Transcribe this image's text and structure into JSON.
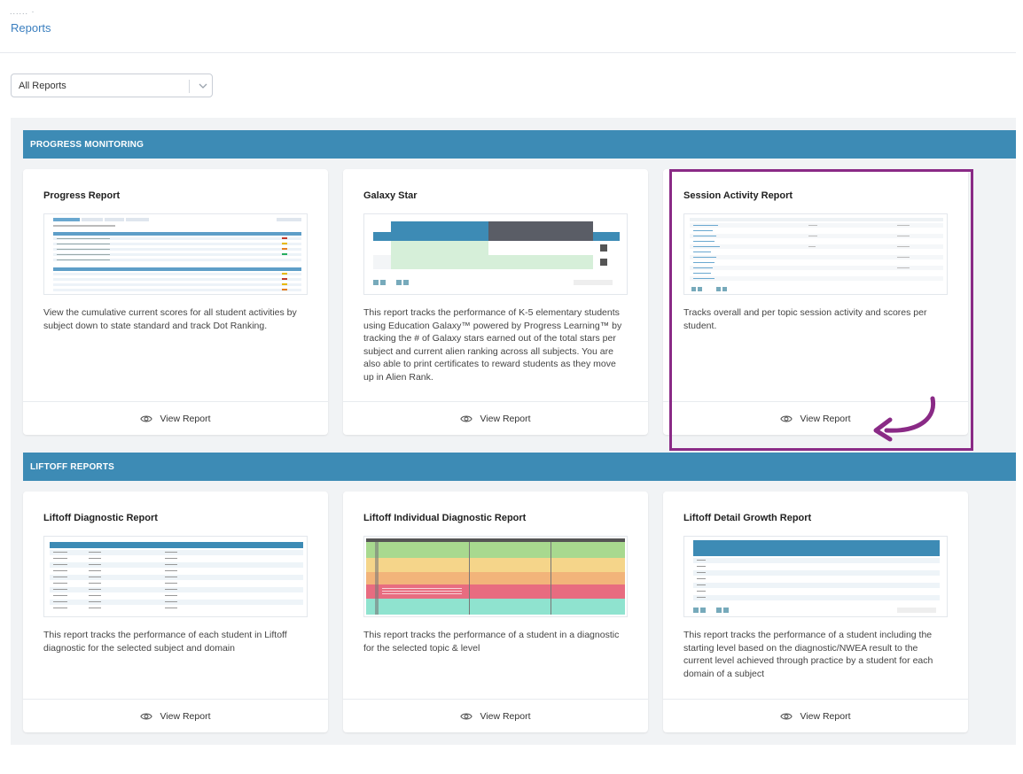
{
  "header": {
    "breadcrumb": "......  ·",
    "title": "Reports"
  },
  "filter": {
    "selected": "All Reports",
    "icon": "chevron-down-icon"
  },
  "sections": [
    {
      "title": "PROGRESS MONITORING",
      "cards": [
        {
          "title": "Progress Report",
          "description": "View the cumulative current scores for all student activities by subject down to state standard and track Dot Ranking.",
          "action": "View Report"
        },
        {
          "title": "Galaxy Star",
          "description": "This report tracks the performance of K-5 elementary students using Education Galaxy™ powered by Progress Learning™ by tracking the # of Galaxy stars earned out of the total stars per subject and current alien ranking across all subjects. You are also able to print certificates to reward students as they move up in Alien Rank.",
          "action": "View Report"
        },
        {
          "title": "Session Activity Report",
          "description": "Tracks overall and per topic session activity and scores per student.",
          "action": "View Report"
        }
      ]
    },
    {
      "title": "LIFTOFF REPORTS",
      "cards": [
        {
          "title": "Liftoff Diagnostic Report",
          "description": "This report tracks the performance of each student in Liftoff diagnostic for the selected subject and domain",
          "action": "View Report"
        },
        {
          "title": "Liftoff Individual Diagnostic Report",
          "description": "This report tracks the performance of a student in a diagnostic for the selected topic & level",
          "action": "View Report"
        },
        {
          "title": "Liftoff Detail Growth Report",
          "description": "This report tracks the performance of a student including the starting level based on the diagnostic/NWEA result to the current level achieved through practice by a student for each domain of a subject",
          "action": "View Report"
        }
      ]
    }
  ],
  "colors": {
    "section_bar": "#3d8bb5",
    "title_link": "#3b7fbf",
    "highlight": "#8a2a86",
    "background": "#f1f3f5"
  }
}
